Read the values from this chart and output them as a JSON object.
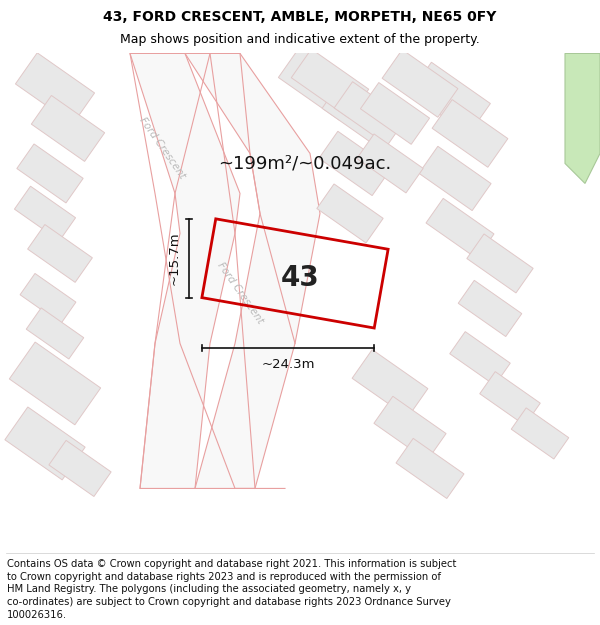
{
  "title_line1": "43, FORD CRESCENT, AMBLE, MORPETH, NE65 0FY",
  "title_line2": "Map shows position and indicative extent of the property.",
  "area_text": "~199m²/~0.049ac.",
  "plot_number": "43",
  "dim_width": "~24.3m",
  "dim_height": "~15.7m",
  "footer_lines": [
    "Contains OS data © Crown copyright and database right 2021. This information is subject",
    "to Crown copyright and database rights 2023 and is reproduced with the permission of",
    "HM Land Registry. The polygons (including the associated geometry, namely x, y",
    "co-ordinates) are subject to Crown copyright and database rights 2023 Ordnance Survey",
    "100026316."
  ],
  "map_bg": "#ffffff",
  "plot_fill": "#ffffff",
  "plot_edge": "#cc0000",
  "road_fill": "#ffffff",
  "road_edge": "#e8a0a0",
  "road_label_color": "#bbbbbb",
  "building_fill": "#e8e8e8",
  "building_edge": "#e0c8c8",
  "green_fill": "#c8e8b8",
  "green_edge": "#a8c898",
  "dim_color": "#111111",
  "title_fontsize": 10,
  "subtitle_fontsize": 9,
  "footer_fontsize": 7.5,
  "area_fontsize": 13,
  "plot_num_fontsize": 20,
  "dim_fontsize": 9.5
}
